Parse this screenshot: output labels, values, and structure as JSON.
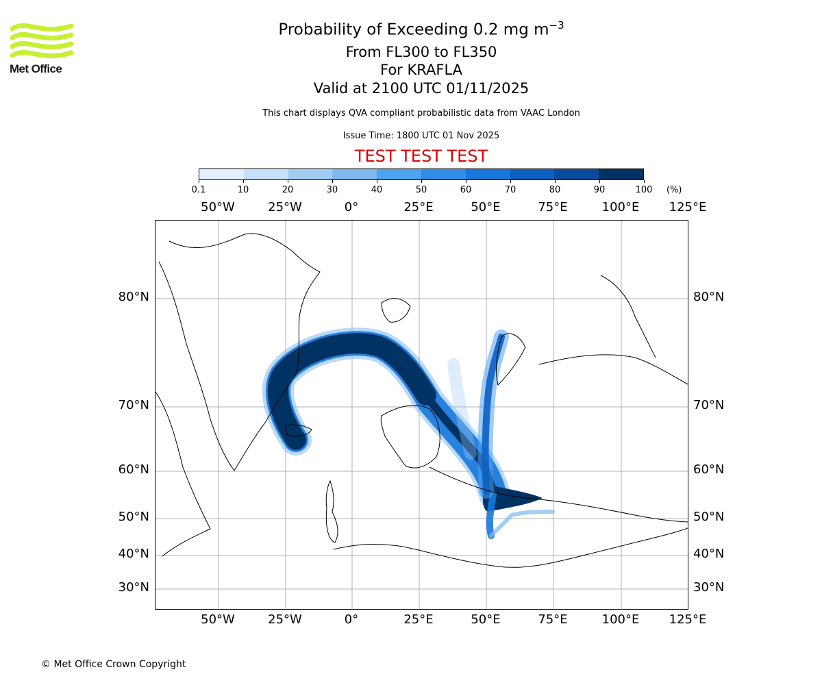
{
  "branding": {
    "logo_text": "Met Office",
    "logo_color": "#c8f032",
    "logo_icon": "wave-stripes-logo"
  },
  "titles": {
    "title_main": "Probability of Exceeding 0.2 mg m",
    "title_exponent": "−3",
    "flight_levels": "From FL300 to FL350",
    "volcano": "For KRAFLA",
    "valid_time": "Valid at 2100 UTC 01/11/2025",
    "description": "This chart displays QVA compliant probabilistic data from VAAC London",
    "issue_time": "Issue Time: 1800 UTC 01 Nov 2025",
    "test_banner": "TEST TEST TEST",
    "test_banner_color": "#e00000"
  },
  "colorbar": {
    "unit": "(%)",
    "ticks": [
      "0.1",
      "10",
      "20",
      "30",
      "40",
      "50",
      "60",
      "70",
      "80",
      "90",
      "100"
    ],
    "colors": [
      "#e3effc",
      "#c6e0f8",
      "#a3ccf2",
      "#7fb9f0",
      "#4ea3f0",
      "#2f8de8",
      "#1777dc",
      "#0b60c2",
      "#084c9e",
      "#003264"
    ]
  },
  "map": {
    "lon_labels": [
      "50°W",
      "25°W",
      "0°",
      "25°E",
      "50°E",
      "75°E",
      "100°E",
      "125°E"
    ],
    "lat_labels": [
      "80°N",
      "70°N",
      "60°N",
      "50°N",
      "40°N",
      "30°N"
    ],
    "plume_dark_color": "#003264",
    "coast_color": "#000000",
    "grid_color": "#b0b0b0"
  },
  "footer": {
    "copyright": "© Met Office Crown Copyright"
  }
}
